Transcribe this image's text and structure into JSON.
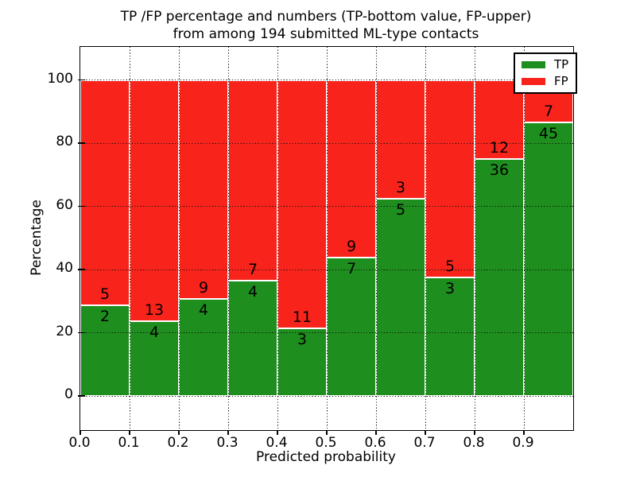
{
  "figure": {
    "title_line1": "TP /FP percentage and numbers (TP-bottom value, FP-upper)",
    "title_line2": "from among 194 submitted ML-type contacts",
    "xlabel": "Predicted probability",
    "ylabel": "Percentage"
  },
  "chart_data": {
    "type": "bar",
    "stacked": true,
    "normalized": "each bar scaled to 100%",
    "title": "TP /FP percentage and numbers (TP-bottom value, FP-upper) from among 194 submitted ML-type contacts",
    "xlabel": "Predicted probability",
    "ylabel": "Percentage",
    "total_contacts": 194,
    "bin_edges": [
      0.0,
      0.1,
      0.2,
      0.3,
      0.4,
      0.5,
      0.6,
      0.7,
      0.8,
      0.9,
      1.0
    ],
    "x_tick_labels": [
      "0.0",
      "0.1",
      "0.2",
      "0.3",
      "0.4",
      "0.5",
      "0.6",
      "0.7",
      "0.8",
      "0.9"
    ],
    "y_ticks": [
      0,
      20,
      40,
      60,
      80,
      100
    ],
    "ylim": [
      -11,
      110
    ],
    "xlim": [
      0.0,
      1.0
    ],
    "grid": "dotted black, on",
    "legend_position": "upper right",
    "series": [
      {
        "name": "TP",
        "color": "#1e8e1e",
        "counts": [
          2,
          4,
          4,
          4,
          3,
          7,
          5,
          3,
          36,
          45
        ]
      },
      {
        "name": "FP",
        "color": "#f8241c",
        "counts": [
          5,
          13,
          9,
          7,
          11,
          9,
          3,
          5,
          12,
          7
        ]
      }
    ],
    "tp_percent_of_bin": [
      28.6,
      23.5,
      30.8,
      36.4,
      21.4,
      43.8,
      62.5,
      37.5,
      75.0,
      86.5
    ]
  }
}
